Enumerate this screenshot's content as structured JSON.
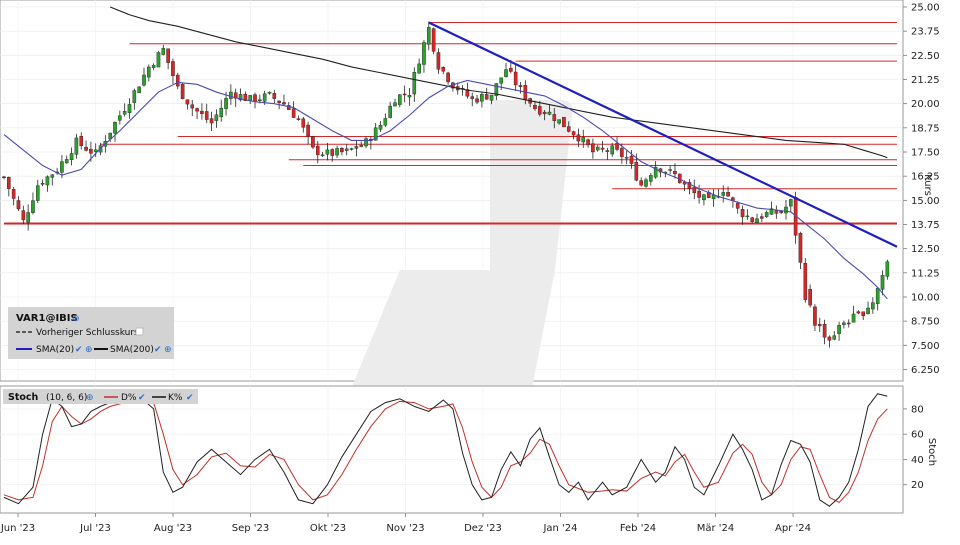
{
  "colors": {
    "up": "#2ca02c",
    "down": "#d62728",
    "sma20": "#4a4ab0",
    "sma200": "#222222",
    "trendline": "#1f1fbf",
    "level": "#d62728",
    "stoch_d": "#c0302a",
    "stoch_k": "#222222",
    "legend_bg": "#d3d3d3",
    "check": "#2f6fd0"
  },
  "legend": {
    "ticker": "VAR1@IBIS",
    "prev_close": "Vorheriger Schlusskurs",
    "sma20": "SMA(20)",
    "sma200": "SMA(200)"
  },
  "stoch_legend": {
    "title": "Stoch",
    "params": "(10, 6, 6)",
    "d": "D%",
    "k": "K%"
  },
  "chart_data": [
    {
      "type": "candlestick",
      "ylabel": "Kurs",
      "ylim": [
        5.5,
        25.0
      ],
      "yticks": [
        "25.00",
        "23.75",
        "22.50",
        "21.25",
        "20.00",
        "18.75",
        "17.50",
        "16.25",
        "15.00",
        "13.75",
        "12.50",
        "11.25",
        "10.00",
        "8.750",
        "7.500",
        "6.250"
      ],
      "xticks": [
        "Jun '23",
        "Jul '23",
        "Aug '23",
        "Sep '23",
        "Okt '23",
        "Nov '23",
        "Dez '23",
        "Jan '24",
        "Feb '24",
        "Mär '24",
        "Apr '24"
      ],
      "close_path": [
        [
          0,
          16.2
        ],
        [
          4,
          13.9
        ],
        [
          7,
          15.8
        ],
        [
          11,
          16.6
        ],
        [
          15,
          18.0
        ],
        [
          19,
          17.4
        ],
        [
          23,
          19.0
        ],
        [
          27,
          20.6
        ],
        [
          30,
          21.9
        ],
        [
          33,
          22.8
        ],
        [
          36,
          20.8
        ],
        [
          39,
          19.8
        ],
        [
          43,
          19.0
        ],
        [
          47,
          20.6
        ],
        [
          51,
          20.2
        ],
        [
          55,
          20.4
        ],
        [
          58,
          20.0
        ],
        [
          61,
          19.2
        ],
        [
          64,
          17.6
        ],
        [
          67,
          17.4
        ],
        [
          71,
          17.5
        ],
        [
          75,
          18.0
        ],
        [
          78,
          18.9
        ],
        [
          81,
          20.3
        ],
        [
          84,
          20.6
        ],
        [
          86,
          22.3
        ],
        [
          88,
          23.9
        ],
        [
          90,
          22.0
        ],
        [
          93,
          21.0
        ],
        [
          97,
          20.2
        ],
        [
          101,
          20.5
        ],
        [
          104,
          21.8
        ],
        [
          107,
          20.7
        ],
        [
          110,
          19.8
        ],
        [
          113,
          19.5
        ],
        [
          116,
          18.9
        ],
        [
          119,
          18.3
        ],
        [
          122,
          17.5
        ],
        [
          126,
          17.6
        ],
        [
          129,
          17.2
        ],
        [
          132,
          15.8
        ],
        [
          135,
          16.8
        ],
        [
          139,
          16.3
        ],
        [
          142,
          15.5
        ],
        [
          146,
          14.9
        ],
        [
          149,
          15.6
        ],
        [
          152,
          14.5
        ],
        [
          155,
          14.0
        ],
        [
          158,
          14.3
        ],
        [
          161,
          14.4
        ],
        [
          163,
          14.9
        ],
        [
          166,
          10.1
        ],
        [
          168,
          8.7
        ],
        [
          171,
          7.8
        ],
        [
          174,
          8.7
        ],
        [
          177,
          9.0
        ],
        [
          180,
          9.8
        ],
        [
          183,
          11.8
        ]
      ],
      "sma20": [
        [
          0,
          18.4
        ],
        [
          4,
          17.6
        ],
        [
          8,
          16.8
        ],
        [
          12,
          16.3
        ],
        [
          16,
          16.6
        ],
        [
          20,
          17.7
        ],
        [
          24,
          18.6
        ],
        [
          28,
          19.6
        ],
        [
          32,
          20.6
        ],
        [
          36,
          21.1
        ],
        [
          40,
          21.0
        ],
        [
          44,
          20.6
        ],
        [
          48,
          20.3
        ],
        [
          52,
          20.1
        ],
        [
          56,
          20.0
        ],
        [
          60,
          19.8
        ],
        [
          64,
          19.2
        ],
        [
          68,
          18.6
        ],
        [
          72,
          18.1
        ],
        [
          76,
          18.1
        ],
        [
          80,
          18.6
        ],
        [
          84,
          19.4
        ],
        [
          88,
          20.3
        ],
        [
          92,
          20.9
        ],
        [
          96,
          21.2
        ],
        [
          100,
          21.0
        ],
        [
          104,
          20.8
        ],
        [
          108,
          20.6
        ],
        [
          112,
          20.4
        ],
        [
          116,
          19.9
        ],
        [
          120,
          19.3
        ],
        [
          124,
          18.6
        ],
        [
          128,
          17.8
        ],
        [
          132,
          17.0
        ],
        [
          136,
          16.5
        ],
        [
          140,
          16.1
        ],
        [
          144,
          15.6
        ],
        [
          148,
          15.2
        ],
        [
          152,
          14.9
        ],
        [
          156,
          14.6
        ],
        [
          160,
          14.5
        ],
        [
          163,
          14.4
        ],
        [
          166,
          13.8
        ],
        [
          170,
          13.0
        ],
        [
          174,
          12.0
        ],
        [
          178,
          11.2
        ],
        [
          181,
          10.5
        ],
        [
          183,
          9.9
        ]
      ],
      "sma200": [
        [
          22,
          25.0
        ],
        [
          26,
          24.6
        ],
        [
          30,
          24.3
        ],
        [
          36,
          24.0
        ],
        [
          42,
          23.6
        ],
        [
          48,
          23.2
        ],
        [
          54,
          22.9
        ],
        [
          60,
          22.6
        ],
        [
          66,
          22.3
        ],
        [
          72,
          21.9
        ],
        [
          78,
          21.6
        ],
        [
          84,
          21.3
        ],
        [
          90,
          21.0
        ],
        [
          96,
          20.7
        ],
        [
          102,
          20.5
        ],
        [
          108,
          20.2
        ],
        [
          114,
          19.9
        ],
        [
          120,
          19.6
        ],
        [
          126,
          19.3
        ],
        [
          132,
          19.1
        ],
        [
          138,
          18.9
        ],
        [
          144,
          18.7
        ],
        [
          150,
          18.5
        ],
        [
          156,
          18.3
        ],
        [
          162,
          18.1
        ],
        [
          168,
          18.0
        ],
        [
          174,
          17.9
        ],
        [
          178,
          17.6
        ],
        [
          182,
          17.3
        ],
        [
          183,
          17.2
        ]
      ],
      "trendline": [
        [
          88,
          24.2
        ],
        [
          185,
          12.6
        ]
      ],
      "levels": [
        [
          88,
          185,
          24.2
        ],
        [
          26,
          185,
          23.1
        ],
        [
          106,
          185,
          22.2
        ],
        [
          36,
          185,
          18.3
        ],
        [
          20,
          185,
          17.9
        ],
        [
          59,
          185,
          17.1
        ],
        [
          62,
          185,
          16.8
        ],
        [
          126,
          185,
          15.6
        ],
        [
          0,
          185,
          13.8
        ]
      ],
      "candles_count": 184,
      "seed": 7
    },
    {
      "type": "line",
      "ylabel": "Stoch",
      "ylim": [
        0,
        100
      ],
      "yticks": [
        "80",
        "60",
        "40",
        "20"
      ],
      "k": [
        [
          0,
          10
        ],
        [
          3,
          5
        ],
        [
          6,
          18
        ],
        [
          8,
          60
        ],
        [
          10,
          88
        ],
        [
          12,
          82
        ],
        [
          14,
          66
        ],
        [
          16,
          68
        ],
        [
          18,
          78
        ],
        [
          20,
          82
        ],
        [
          22,
          85
        ],
        [
          25,
          88
        ],
        [
          28,
          90
        ],
        [
          31,
          80
        ],
        [
          33,
          30
        ],
        [
          35,
          14
        ],
        [
          37,
          18
        ],
        [
          40,
          38
        ],
        [
          43,
          48
        ],
        [
          46,
          38
        ],
        [
          49,
          28
        ],
        [
          52,
          40
        ],
        [
          55,
          48
        ],
        [
          58,
          30
        ],
        [
          61,
          8
        ],
        [
          64,
          5
        ],
        [
          67,
          20
        ],
        [
          70,
          42
        ],
        [
          73,
          60
        ],
        [
          76,
          78
        ],
        [
          79,
          85
        ],
        [
          82,
          88
        ],
        [
          85,
          82
        ],
        [
          88,
          78
        ],
        [
          91,
          87
        ],
        [
          93,
          80
        ],
        [
          95,
          45
        ],
        [
          97,
          20
        ],
        [
          99,
          8
        ],
        [
          101,
          10
        ],
        [
          103,
          32
        ],
        [
          105,
          46
        ],
        [
          107,
          35
        ],
        [
          109,
          56
        ],
        [
          111,
          65
        ],
        [
          113,
          42
        ],
        [
          115,
          20
        ],
        [
          117,
          14
        ],
        [
          119,
          22
        ],
        [
          121,
          8
        ],
        [
          124,
          22
        ],
        [
          126,
          12
        ],
        [
          129,
          18
        ],
        [
          132,
          40
        ],
        [
          135,
          22
        ],
        [
          137,
          30
        ],
        [
          139,
          50
        ],
        [
          141,
          40
        ],
        [
          143,
          18
        ],
        [
          145,
          12
        ],
        [
          148,
          35
        ],
        [
          151,
          60
        ],
        [
          153,
          48
        ],
        [
          155,
          32
        ],
        [
          157,
          8
        ],
        [
          159,
          12
        ],
        [
          161,
          36
        ],
        [
          163,
          55
        ],
        [
          165,
          52
        ],
        [
          167,
          38
        ],
        [
          169,
          8
        ],
        [
          171,
          3
        ],
        [
          173,
          10
        ],
        [
          175,
          22
        ],
        [
          177,
          48
        ],
        [
          179,
          82
        ],
        [
          181,
          92
        ],
        [
          183,
          90
        ]
      ],
      "d": [
        [
          0,
          12
        ],
        [
          3,
          8
        ],
        [
          6,
          10
        ],
        [
          8,
          35
        ],
        [
          10,
          70
        ],
        [
          12,
          82
        ],
        [
          14,
          74
        ],
        [
          16,
          68
        ],
        [
          18,
          72
        ],
        [
          20,
          78
        ],
        [
          22,
          82
        ],
        [
          25,
          85
        ],
        [
          28,
          88
        ],
        [
          31,
          85
        ],
        [
          33,
          60
        ],
        [
          35,
          32
        ],
        [
          37,
          20
        ],
        [
          40,
          28
        ],
        [
          43,
          42
        ],
        [
          46,
          45
        ],
        [
          49,
          35
        ],
        [
          52,
          34
        ],
        [
          55,
          44
        ],
        [
          58,
          40
        ],
        [
          61,
          20
        ],
        [
          64,
          8
        ],
        [
          67,
          12
        ],
        [
          70,
          28
        ],
        [
          73,
          48
        ],
        [
          76,
          66
        ],
        [
          79,
          80
        ],
        [
          82,
          86
        ],
        [
          85,
          85
        ],
        [
          88,
          80
        ],
        [
          91,
          82
        ],
        [
          93,
          84
        ],
        [
          95,
          65
        ],
        [
          97,
          38
        ],
        [
          99,
          18
        ],
        [
          101,
          10
        ],
        [
          103,
          18
        ],
        [
          105,
          35
        ],
        [
          107,
          38
        ],
        [
          109,
          45
        ],
        [
          111,
          56
        ],
        [
          113,
          52
        ],
        [
          115,
          35
        ],
        [
          117,
          20
        ],
        [
          119,
          17
        ],
        [
          121,
          14
        ],
        [
          124,
          15
        ],
        [
          126,
          16
        ],
        [
          129,
          15
        ],
        [
          132,
          25
        ],
        [
          135,
          30
        ],
        [
          137,
          27
        ],
        [
          139,
          38
        ],
        [
          141,
          44
        ],
        [
          143,
          30
        ],
        [
          145,
          18
        ],
        [
          148,
          22
        ],
        [
          151,
          45
        ],
        [
          153,
          52
        ],
        [
          155,
          44
        ],
        [
          157,
          22
        ],
        [
          159,
          12
        ],
        [
          161,
          20
        ],
        [
          163,
          40
        ],
        [
          165,
          50
        ],
        [
          167,
          48
        ],
        [
          169,
          28
        ],
        [
          171,
          10
        ],
        [
          173,
          6
        ],
        [
          175,
          14
        ],
        [
          177,
          30
        ],
        [
          179,
          55
        ],
        [
          181,
          72
        ],
        [
          183,
          80
        ]
      ]
    }
  ]
}
